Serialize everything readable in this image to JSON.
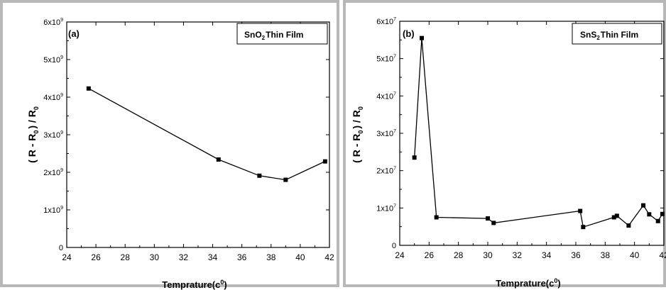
{
  "chart_data": [
    {
      "type": "line",
      "panel_label": "(a)",
      "title": "SnO",
      "title_sub": "2",
      "title_tail": "Thin Film",
      "xlabel": "Temprature(c",
      "xlabel_sup": "0",
      "xlabel_tail": ")",
      "ylabel": "( R - R",
      "ylabel_sub": "0",
      "ylabel_mid": ") / R",
      "ylabel_sub2": "0",
      "xlim": [
        24,
        42
      ],
      "ylim": [
        0,
        6000000000
      ],
      "xticks": [
        24,
        26,
        28,
        30,
        32,
        34,
        36,
        38,
        40,
        42
      ],
      "xtick_labels": [
        "24",
        "26",
        "28",
        "30",
        "32",
        "34",
        "36",
        "38",
        "40",
        "42"
      ],
      "yticks": [
        0,
        1000000000,
        2000000000,
        3000000000,
        4000000000,
        5000000000,
        6000000000
      ],
      "ytick_base": [
        "0",
        "1x10",
        "2x10",
        "3x10",
        "4x10",
        "5x10",
        "6x10"
      ],
      "ytick_exp": [
        "",
        "9",
        "9",
        "9",
        "9",
        "9",
        "9"
      ],
      "grid": false,
      "x": [
        25.5,
        34.4,
        37.2,
        39.0,
        41.7
      ],
      "y": [
        4230000000,
        2340000000,
        1910000000,
        1800000000,
        2290000000
      ]
    },
    {
      "type": "line",
      "panel_label": "(b)",
      "title": "SnS",
      "title_sub": "2",
      "title_tail": "Thin Film",
      "xlabel": "Temprature(c",
      "xlabel_sup": "0",
      "xlabel_tail": ")",
      "ylabel": "( R - R",
      "ylabel_sub": "0",
      "ylabel_mid": ") / R",
      "ylabel_sub2": "0",
      "xlim": [
        24,
        42
      ],
      "ylim": [
        0,
        60000000
      ],
      "xticks": [
        24,
        26,
        28,
        30,
        32,
        34,
        36,
        38,
        40,
        42
      ],
      "xtick_labels": [
        "24",
        "26",
        "28",
        "30",
        "32",
        "34",
        "36",
        "38",
        "40",
        "42"
      ],
      "yticks": [
        0,
        10000000,
        20000000,
        30000000,
        40000000,
        50000000,
        60000000
      ],
      "ytick_base": [
        "0",
        "1x10",
        "2x10",
        "3x10",
        "4x10",
        "5x10",
        "6x10"
      ],
      "ytick_exp": [
        "",
        "7",
        "7",
        "7",
        "7",
        "7",
        "7"
      ],
      "grid": false,
      "x": [
        25.0,
        25.5,
        26.5,
        30.0,
        30.4,
        36.3,
        36.5,
        38.6,
        38.8,
        39.6,
        40.6,
        41.0,
        41.6,
        41.9
      ],
      "y": [
        23500000,
        55500000,
        7500000,
        7200000,
        6000000,
        9200000,
        4900000,
        7500000,
        7900000,
        5300000,
        10700000,
        8300000,
        6500000,
        8400000
      ]
    }
  ]
}
